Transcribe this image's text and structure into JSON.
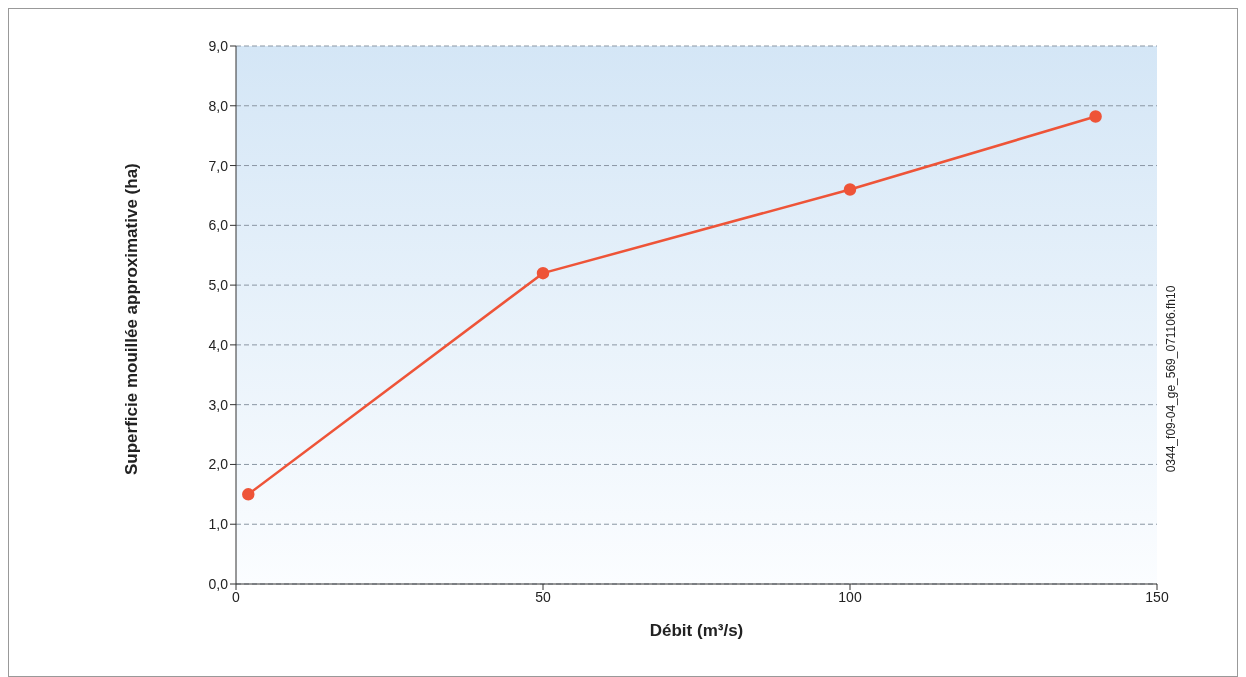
{
  "chart_data": {
    "type": "line",
    "xlabel": "Débit (m³/s)",
    "ylabel": "Superficie mouillée approximative (ha)",
    "annotations": [
      "0344_f09-04_ge_569_071106.fh10"
    ],
    "x": [
      2,
      50,
      100,
      140
    ],
    "series": [
      {
        "color": "#ee5438",
        "values": [
          1.5,
          5.2,
          6.6,
          7.82
        ]
      }
    ],
    "xlim": [
      0,
      150
    ],
    "xticks": [
      0,
      50,
      100,
      150
    ],
    "ylim": [
      0,
      9
    ],
    "yticks": [
      {
        "value": 0,
        "label": "0,0"
      },
      {
        "value": 1,
        "label": "1,0"
      },
      {
        "value": 2,
        "label": "2,0"
      },
      {
        "value": 3,
        "label": "3,0"
      },
      {
        "value": 4,
        "label": "4,0"
      },
      {
        "value": 5,
        "label": "5,0"
      },
      {
        "value": 6,
        "label": "6,0"
      },
      {
        "value": 7,
        "label": "7,0"
      },
      {
        "value": 8,
        "label": "8,0"
      },
      {
        "value": 9,
        "label": "9,0"
      }
    ],
    "grid": "y",
    "marker": "circle",
    "line_style": "solid",
    "legend": false
  }
}
